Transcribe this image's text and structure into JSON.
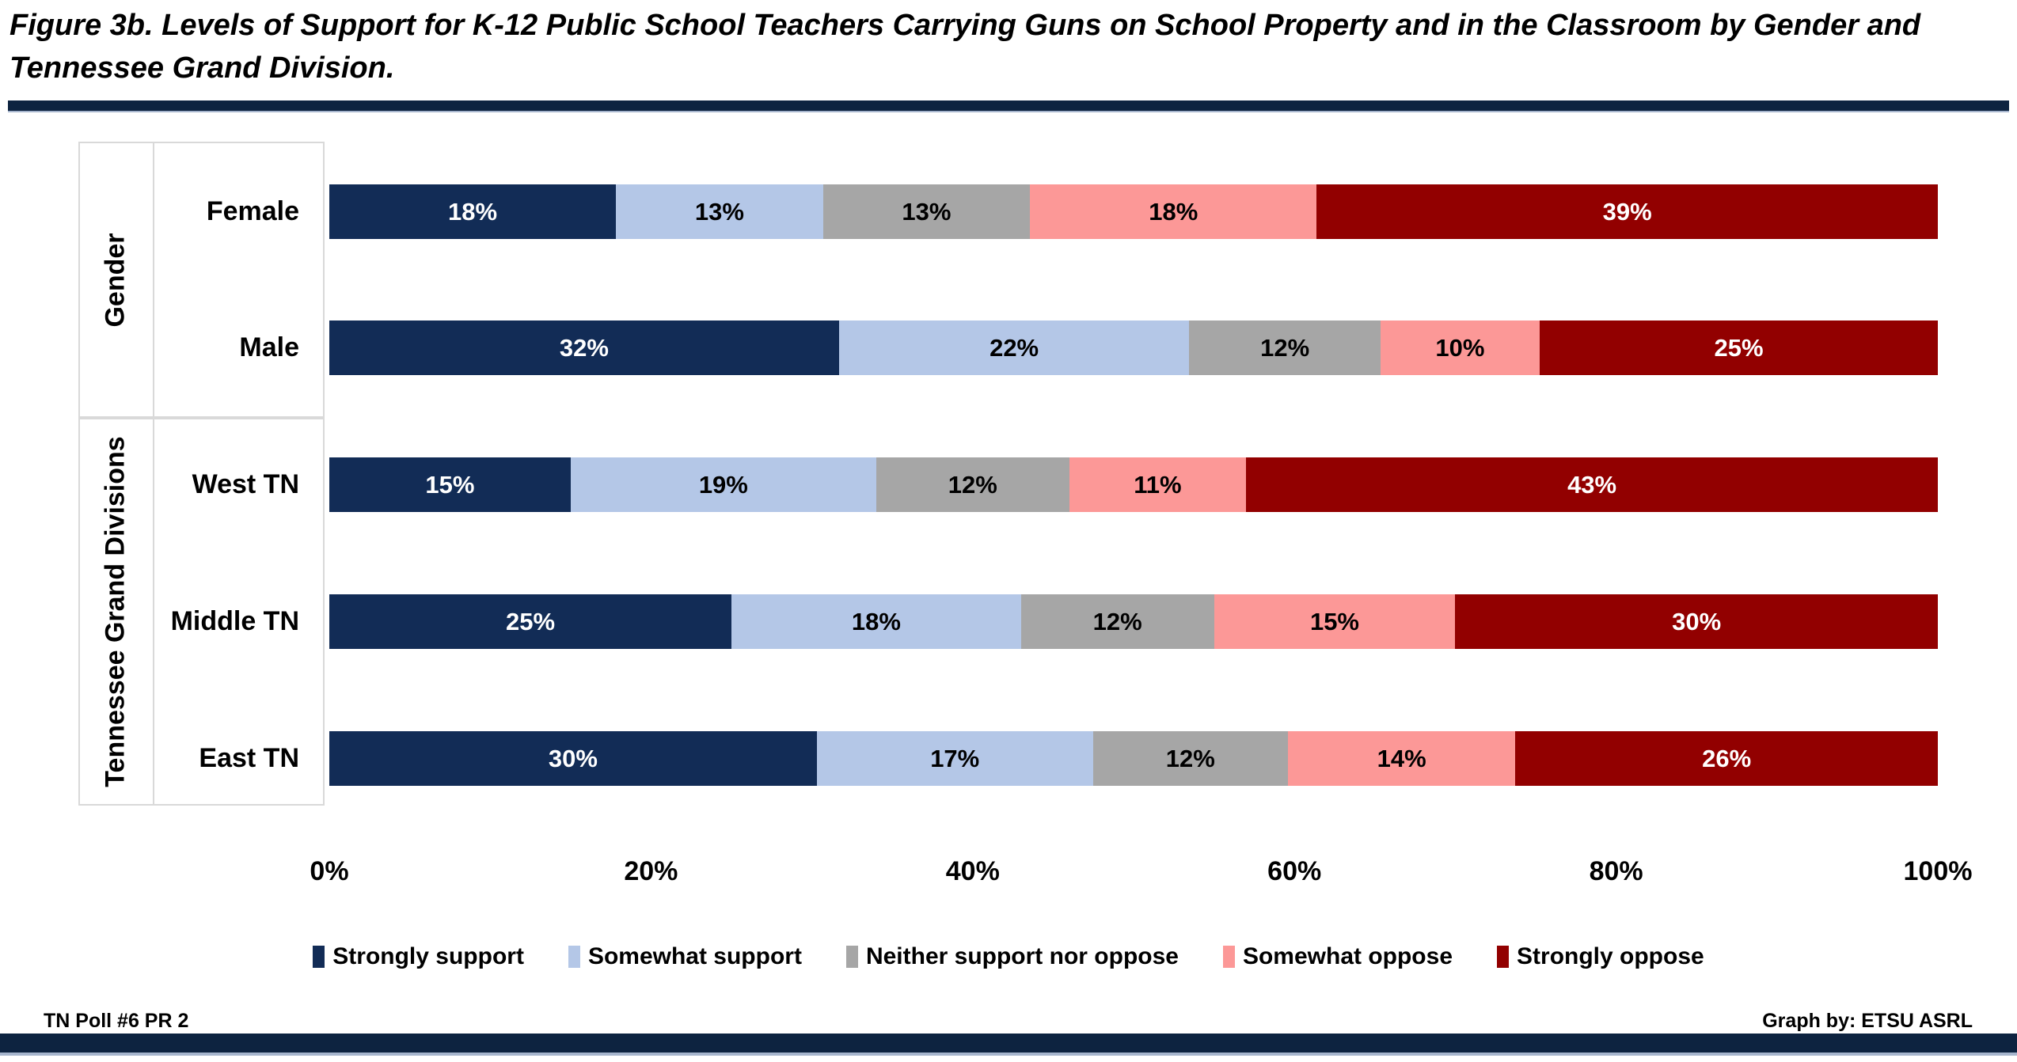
{
  "title": {
    "text": "Figure 3b. Levels of Support for K-12 Public School Teachers Carrying Guns on School Property and in the Classroom by Gender and Tennessee Grand Division."
  },
  "footer": {
    "left": "TN Poll #6 PR 2",
    "right": "Graph by: ETSU ASRL"
  },
  "colors": {
    "rule_navy": "#0d2340",
    "box_border": "#d9d9d9"
  },
  "chart_data": {
    "type": "bar",
    "orientation": "horizontal",
    "stacked": true,
    "title": "Figure 3b. Levels of Support for K-12 Public School Teachers Carrying Guns on School Property and in the Classroom by Gender and Tennessee Grand Division.",
    "xlabel": "",
    "ylabel": "",
    "xlim": [
      0,
      100
    ],
    "x_ticks": [
      "0%",
      "20%",
      "40%",
      "60%",
      "80%",
      "100%"
    ],
    "grid": false,
    "legend_position": "bottom",
    "data_label_format": "{value}%",
    "groups": [
      {
        "label": "Gender",
        "categories": [
          "Female",
          "Male"
        ]
      },
      {
        "label": "Tennessee Grand Divisions",
        "categories": [
          "West TN",
          "Middle TN",
          "East TN"
        ]
      }
    ],
    "categories": [
      "Female",
      "Male",
      "West TN",
      "Middle TN",
      "East TN"
    ],
    "series": [
      {
        "name": "Strongly support",
        "color": "#122c56",
        "label_color": "#ffffff",
        "values": [
          18,
          32,
          15,
          25,
          30
        ]
      },
      {
        "name": "Somewhat support",
        "color": "#b4c7e7",
        "label_color": "#000000",
        "values": [
          13,
          22,
          19,
          18,
          17
        ]
      },
      {
        "name": "Neither support nor oppose",
        "color": "#a6a6a6",
        "label_color": "#000000",
        "values": [
          13,
          12,
          12,
          12,
          12
        ]
      },
      {
        "name": "Somewhat oppose",
        "color": "#fc9897",
        "label_color": "#000000",
        "values": [
          18,
          10,
          11,
          15,
          14
        ]
      },
      {
        "name": "Strongly oppose",
        "color": "#920000",
        "label_color": "#ffffff",
        "values": [
          39,
          25,
          43,
          30,
          26
        ]
      }
    ]
  }
}
